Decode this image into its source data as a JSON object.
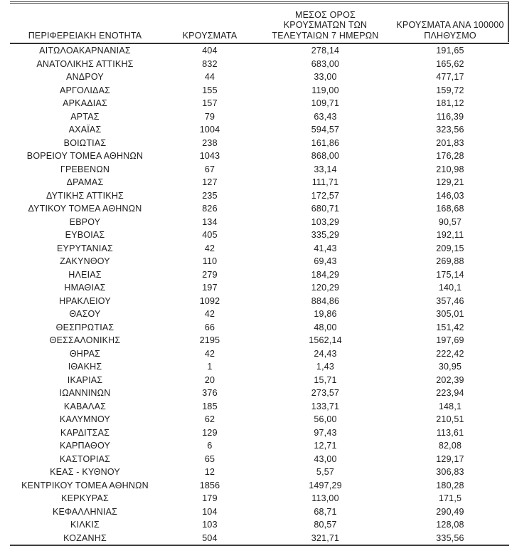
{
  "page": {
    "background": "#ffffff",
    "text_color": "#1d1d1d",
    "rule_color": "#323232",
    "decimal_separator": ","
  },
  "table": {
    "columns": [
      {
        "id": "region",
        "label": "ΠΕΡΙΦΕΡΕΙΑΚΗ ΕΝΟΤΗΤΑ",
        "lines": [
          "ΠΕΡΙΦΕΡΕΙΑΚΗ ΕΝΟΤΗΤΑ"
        ]
      },
      {
        "id": "cases",
        "label": "ΚΡΟΥΣΜΑΤΑ",
        "lines": [
          "ΚΡΟΥΣΜΑΤΑ"
        ]
      },
      {
        "id": "avg-7-days",
        "label": "ΜΕΣΟΣ ΟΡΟΣ ΚΡΟΥΣΜΑΤΩΝ ΤΩΝ ΤΕΛΕΥΤΑΙΩΝ 7 ΗΜΕΡΩΝ",
        "lines": [
          "ΜΕΣΟΣ ΟΡΟΣ",
          "ΚΡΟΥΣΜΑΤΩΝ ΤΩΝ",
          "ΤΕΛΕΥΤΑΙΩΝ 7 ΗΜΕΡΩΝ"
        ]
      },
      {
        "id": "per-100k",
        "label": "ΚΡΟΥΣΜΑΤΑ ΑΝΑ 100000 ΠΛΗΘΥΣΜΟ",
        "lines": [
          "ΚΡΟΥΣΜΑΤΑ ΑΝΑ 100000",
          "ΠΛΗΘΥΣΜΟ"
        ]
      }
    ],
    "rows": [
      [
        "ΑΙΤΩΛΟΑΚΑΡΝΑΝΙΑΣ",
        "404",
        "278,14",
        "191,65"
      ],
      [
        "ΑΝΑΤΟΛΙΚΗΣ ΑΤΤΙΚΗΣ",
        "832",
        "683,00",
        "165,62"
      ],
      [
        "ΑΝΔΡΟΥ",
        "44",
        "33,00",
        "477,17"
      ],
      [
        "ΑΡΓΟΛΙΔΑΣ",
        "155",
        "119,00",
        "159,72"
      ],
      [
        "ΑΡΚΑΔΙΑΣ",
        "157",
        "109,71",
        "181,12"
      ],
      [
        "ΑΡΤΑΣ",
        "79",
        "63,43",
        "116,39"
      ],
      [
        "ΑΧΑΪΑΣ",
        "1004",
        "594,57",
        "323,56"
      ],
      [
        "ΒΟΙΩΤΙΑΣ",
        "238",
        "161,86",
        "201,83"
      ],
      [
        "ΒΟΡΕΙΟΥ ΤΟΜΕΑ ΑΘΗΝΩΝ",
        "1043",
        "868,00",
        "176,28"
      ],
      [
        "ΓΡΕΒΕΝΩΝ",
        "67",
        "33,14",
        "210,98"
      ],
      [
        "ΔΡΑΜΑΣ",
        "127",
        "111,71",
        "129,21"
      ],
      [
        "ΔΥΤΙΚΗΣ ΑΤΤΙΚΗΣ",
        "235",
        "172,57",
        "146,03"
      ],
      [
        "ΔΥΤΙΚΟΥ ΤΟΜΕΑ ΑΘΗΝΩΝ",
        "826",
        "680,71",
        "168,68"
      ],
      [
        "ΕΒΡΟΥ",
        "134",
        "103,29",
        "90,57"
      ],
      [
        "ΕΥΒΟΙΑΣ",
        "405",
        "335,29",
        "192,11"
      ],
      [
        "ΕΥΡΥΤΑΝΙΑΣ",
        "42",
        "41,43",
        "209,15"
      ],
      [
        "ΖΑΚΥΝΘΟΥ",
        "110",
        "69,43",
        "269,88"
      ],
      [
        "ΗΛΕΙΑΣ",
        "279",
        "184,29",
        "175,14"
      ],
      [
        "ΗΜΑΘΙΑΣ",
        "197",
        "120,29",
        "140,1"
      ],
      [
        "ΗΡΑΚΛΕΙΟΥ",
        "1092",
        "884,86",
        "357,46"
      ],
      [
        "ΘΑΣΟΥ",
        "42",
        "19,86",
        "305,01"
      ],
      [
        "ΘΕΣΠΡΩΤΙΑΣ",
        "66",
        "48,00",
        "151,42"
      ],
      [
        "ΘΕΣΣΑΛΟΝΙΚΗΣ",
        "2195",
        "1562,14",
        "197,69"
      ],
      [
        "ΘΗΡΑΣ",
        "42",
        "24,43",
        "222,42"
      ],
      [
        "ΙΘΑΚΗΣ",
        "1",
        "1,43",
        "30,95"
      ],
      [
        "ΙΚΑΡΙΑΣ",
        "20",
        "15,71",
        "202,39"
      ],
      [
        "ΙΩΑΝΝΙΝΩΝ",
        "376",
        "273,57",
        "223,94"
      ],
      [
        "ΚΑΒΑΛΑΣ",
        "185",
        "133,71",
        "148,1"
      ],
      [
        "ΚΑΛΥΜΝΟΥ",
        "62",
        "56,00",
        "210,51"
      ],
      [
        "ΚΑΡΔΙΤΣΑΣ",
        "129",
        "97,43",
        "113,61"
      ],
      [
        "ΚΑΡΠΑΘΟΥ",
        "6",
        "12,71",
        "82,08"
      ],
      [
        "ΚΑΣΤΟΡΙΑΣ",
        "65",
        "43,00",
        "129,17"
      ],
      [
        "ΚΕΑΣ - ΚΥΘΝΟΥ",
        "12",
        "5,57",
        "306,83"
      ],
      [
        "ΚΕΝΤΡΙΚΟΥ ΤΟΜΕΑ ΑΘΗΝΩΝ",
        "1856",
        "1497,29",
        "180,28"
      ],
      [
        "ΚΕΡΚΥΡΑΣ",
        "179",
        "113,00",
        "171,5"
      ],
      [
        "ΚΕΦΑΛΛΗΝΙΑΣ",
        "104",
        "68,71",
        "290,49"
      ],
      [
        "ΚΙΛΚΙΣ",
        "103",
        "80,57",
        "128,08"
      ],
      [
        "ΚΟΖΑΝΗΣ",
        "504",
        "321,71",
        "335,56"
      ]
    ]
  }
}
